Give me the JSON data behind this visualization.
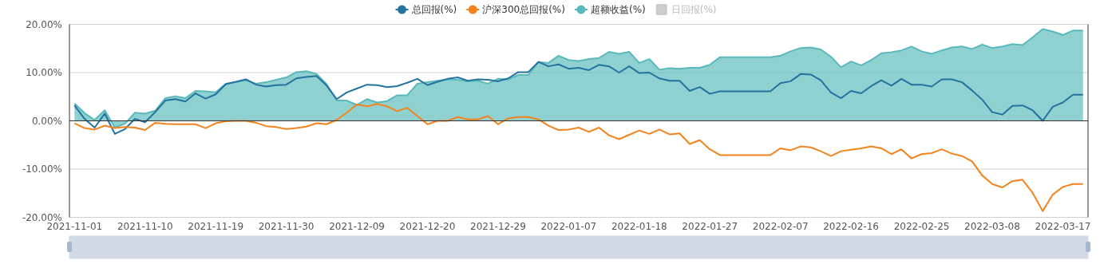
{
  "chart_data": {
    "type": "line",
    "categories": [
      "2021-11-01",
      null,
      null,
      null,
      null,
      null,
      null,
      "2021-11-10",
      null,
      null,
      null,
      null,
      null,
      null,
      "2021-11-19",
      null,
      null,
      null,
      null,
      null,
      null,
      "2021-11-30",
      null,
      null,
      null,
      null,
      null,
      null,
      "2021-12-09",
      null,
      null,
      null,
      null,
      null,
      null,
      "2021-12-20",
      null,
      null,
      null,
      null,
      null,
      null,
      "2021-12-29",
      null,
      null,
      null,
      null,
      null,
      null,
      "2022-01-07",
      null,
      null,
      null,
      null,
      null,
      null,
      "2022-01-18",
      null,
      null,
      null,
      null,
      null,
      null,
      "2022-01-27",
      null,
      null,
      null,
      null,
      null,
      null,
      "2022-02-07",
      null,
      null,
      null,
      null,
      null,
      null,
      "2022-02-16",
      null,
      null,
      null,
      null,
      null,
      null,
      "2022-02-25",
      null,
      null,
      null,
      null,
      null,
      null,
      "2022-03-08",
      null,
      null,
      null,
      null,
      null,
      null,
      "2022-03-17",
      null,
      null
    ],
    "series": [
      {
        "name": "总回报(%)",
        "color": "#23729f",
        "values": [
          3.2,
          0.4,
          -1.4,
          1.5,
          -2.7,
          -1.7,
          0.4,
          -0.3,
          1.8,
          4.2,
          4.5,
          4.0,
          5.7,
          4.6,
          5.5,
          7.6,
          8.1,
          8.6,
          7.5,
          7.1,
          7.4,
          7.5,
          8.8,
          9.1,
          9.3,
          7.3,
          4.5,
          5.9,
          6.7,
          7.5,
          7.4,
          7.0,
          7.2,
          7.9,
          8.7,
          7.4,
          8.1,
          8.7,
          9.0,
          8.3,
          8.6,
          8.5,
          8.2,
          8.8,
          10.1,
          10.1,
          12.2,
          11.3,
          11.7,
          10.8,
          11.0,
          10.5,
          11.6,
          11.3,
          10.0,
          11.3,
          9.9,
          10.0,
          8.8,
          8.3,
          8.3,
          6.2,
          7.0,
          5.6,
          6.1,
          6.1,
          6.1,
          6.1,
          6.1,
          6.1,
          7.8,
          8.2,
          9.7,
          9.6,
          8.4,
          5.9,
          4.7,
          6.2,
          5.7,
          7.2,
          8.4,
          7.3,
          8.7,
          7.5,
          7.5,
          7.1,
          8.6,
          8.6,
          8.0,
          6.3,
          4.4,
          1.8,
          1.3,
          3.1,
          3.2,
          2.2,
          0.0,
          2.9,
          3.8,
          5.4,
          5.4
        ]
      },
      {
        "name": "沪深300总回报(%)",
        "color": "#f5831d",
        "values": [
          -0.5,
          -1.5,
          -1.8,
          -1.0,
          -1.5,
          -1.3,
          -1.4,
          -1.9,
          -0.4,
          -0.6,
          -0.7,
          -0.7,
          -0.7,
          -1.5,
          -0.5,
          -0.1,
          0.0,
          0.0,
          -0.4,
          -1.1,
          -1.3,
          -1.7,
          -1.5,
          -1.2,
          -0.5,
          -0.7,
          0.2,
          1.7,
          3.4,
          3.0,
          3.5,
          3.0,
          2.0,
          2.7,
          1.0,
          -0.7,
          0.0,
          0.0,
          0.8,
          0.3,
          0.3,
          1.0,
          -0.7,
          0.5,
          0.8,
          0.8,
          0.3,
          -1.0,
          -1.9,
          -1.8,
          -1.4,
          -2.3,
          -1.4,
          -3.0,
          -3.8,
          -2.9,
          -2.0,
          -2.7,
          -1.8,
          -2.8,
          -2.6,
          -4.8,
          -4.0,
          -5.9,
          -7.1,
          -7.1,
          -7.1,
          -7.1,
          -7.1,
          -7.1,
          -5.7,
          -6.1,
          -5.3,
          -5.5,
          -6.3,
          -7.3,
          -6.3,
          -6.0,
          -5.7,
          -5.3,
          -5.7,
          -6.9,
          -5.9,
          -7.8,
          -6.9,
          -6.7,
          -5.9,
          -6.8,
          -7.3,
          -8.4,
          -11.3,
          -13.1,
          -13.8,
          -12.5,
          -12.2,
          -14.9,
          -18.7,
          -15.3,
          -13.7,
          -13.1,
          -13.1
        ]
      },
      {
        "name": "超额收益(%)",
        "type": "area",
        "color": "#5ab9bb",
        "values": [
          3.6,
          1.6,
          0.2,
          2.2,
          -1.4,
          -0.6,
          1.7,
          1.5,
          2.1,
          4.7,
          5.1,
          4.7,
          6.2,
          6.1,
          5.9,
          7.7,
          8.0,
          8.4,
          7.7,
          8.0,
          8.5,
          9.0,
          10.1,
          10.3,
          9.7,
          7.6,
          4.2,
          4.2,
          3.3,
          4.5,
          3.8,
          4.1,
          5.3,
          5.3,
          7.7,
          8.0,
          8.3,
          8.6,
          8.5,
          8.2,
          8.3,
          7.7,
          8.7,
          8.6,
          9.5,
          9.5,
          12.2,
          12.0,
          13.5,
          12.6,
          12.4,
          12.8,
          13.0,
          14.3,
          13.9,
          14.3,
          12.0,
          12.8,
          10.6,
          10.9,
          10.8,
          11.0,
          11.0,
          11.6,
          13.2,
          13.2,
          13.2,
          13.2,
          13.2,
          13.2,
          13.5,
          14.4,
          15.1,
          15.2,
          14.8,
          13.3,
          11.1,
          12.3,
          11.5,
          12.6,
          14.0,
          14.2,
          14.6,
          15.4,
          14.4,
          13.9,
          14.6,
          15.2,
          15.4,
          14.9,
          15.8,
          15.1,
          15.4,
          15.9,
          15.7,
          17.3,
          19.0,
          18.5,
          17.8,
          18.7,
          18.7
        ]
      },
      {
        "name": "日回报(%)",
        "color": "#cccccc",
        "values": [
          null,
          null,
          null,
          null,
          null,
          null,
          null,
          null,
          null,
          null,
          null,
          null,
          null,
          null,
          null,
          null,
          null,
          null,
          null,
          null,
          null,
          null,
          null,
          null,
          null,
          null,
          null,
          null,
          null,
          null,
          null,
          null,
          null,
          null,
          null,
          null,
          null,
          null,
          null,
          null,
          null,
          null,
          null,
          null,
          null,
          null,
          null,
          null,
          null,
          null,
          null,
          null,
          null,
          null,
          null,
          null,
          null,
          null,
          null,
          null,
          null,
          null,
          null,
          null,
          null,
          null,
          null,
          null,
          null,
          null,
          null,
          null,
          null,
          null,
          null,
          null,
          null,
          null,
          null,
          null,
          null,
          null,
          null,
          null,
          null,
          null,
          null,
          null,
          null,
          null,
          null,
          null,
          null,
          null,
          null,
          null,
          null,
          null,
          null,
          null,
          null
        ]
      }
    ],
    "ylim": [
      -20,
      20
    ],
    "yticks": [
      {
        "value": -20,
        "label": "-20.00%"
      },
      {
        "value": -10,
        "label": "-10.00%"
      },
      {
        "value": 0,
        "label": "0.00%"
      },
      {
        "value": 10,
        "label": "10.00%"
      },
      {
        "value": 20,
        "label": "20.00%"
      }
    ],
    "grid": "y",
    "legend": "top",
    "marker": "none",
    "line_style": "solid"
  }
}
